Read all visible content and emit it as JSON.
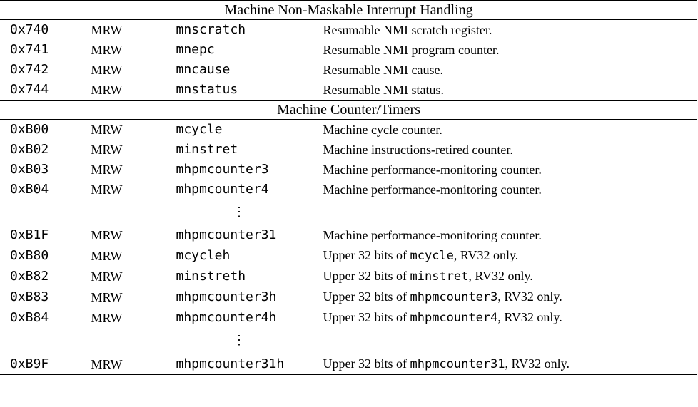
{
  "sections": [
    {
      "title": "Machine Non-Maskable Interrupt Handling",
      "rows": [
        {
          "number": "0x740",
          "privilege": "MRW",
          "name": "mnscratch",
          "description": "Resumable NMI scratch register."
        },
        {
          "number": "0x741",
          "privilege": "MRW",
          "name": "mnepc",
          "description": "Resumable NMI program counter."
        },
        {
          "number": "0x742",
          "privilege": "MRW",
          "name": "mncause",
          "description": "Resumable NMI cause."
        },
        {
          "number": "0x744",
          "privilege": "MRW",
          "name": "mnstatus",
          "description": "Resumable NMI status."
        }
      ]
    },
    {
      "title": "Machine Counter/Timers",
      "rows": [
        {
          "number": "0xB00",
          "privilege": "MRW",
          "name": "mcycle",
          "description": "Machine cycle counter."
        },
        {
          "number": "0xB02",
          "privilege": "MRW",
          "name": "minstret",
          "description": "Machine instructions-retired counter."
        },
        {
          "number": "0xB03",
          "privilege": "MRW",
          "name": "mhpmcounter3",
          "description": "Machine performance-monitoring counter."
        },
        {
          "number": "0xB04",
          "privilege": "MRW",
          "name": "mhpmcounter4",
          "description": "Machine performance-monitoring counter."
        },
        {
          "number": "0xB1F",
          "privilege": "MRW",
          "name": "mhpmcounter31",
          "description": "Machine performance-monitoring counter."
        },
        {
          "number": "0xB80",
          "privilege": "MRW",
          "name": "mcycleh",
          "description_pre": "Upper 32 bits of ",
          "description_code": "mcycle",
          "description_post": ", RV32 only."
        },
        {
          "number": "0xB82",
          "privilege": "MRW",
          "name": "minstreth",
          "description_pre": "Upper 32 bits of ",
          "description_code": "minstret",
          "description_post": ", RV32 only."
        },
        {
          "number": "0xB83",
          "privilege": "MRW",
          "name": "mhpmcounter3h",
          "description_pre": "Upper 32 bits of ",
          "description_code": "mhpmcounter3",
          "description_post": ", RV32 only."
        },
        {
          "number": "0xB84",
          "privilege": "MRW",
          "name": "mhpmcounter4h",
          "description_pre": "Upper 32 bits of ",
          "description_code": "mhpmcounter4",
          "description_post": ", RV32 only."
        },
        {
          "number": "0xB9F",
          "privilege": "MRW",
          "name": "mhpmcounter31h",
          "description_pre": "Upper 32 bits of ",
          "description_code": "mhpmcounter31",
          "description_post": ", RV32 only."
        }
      ]
    }
  ],
  "ellipsis_symbol": "⋮"
}
